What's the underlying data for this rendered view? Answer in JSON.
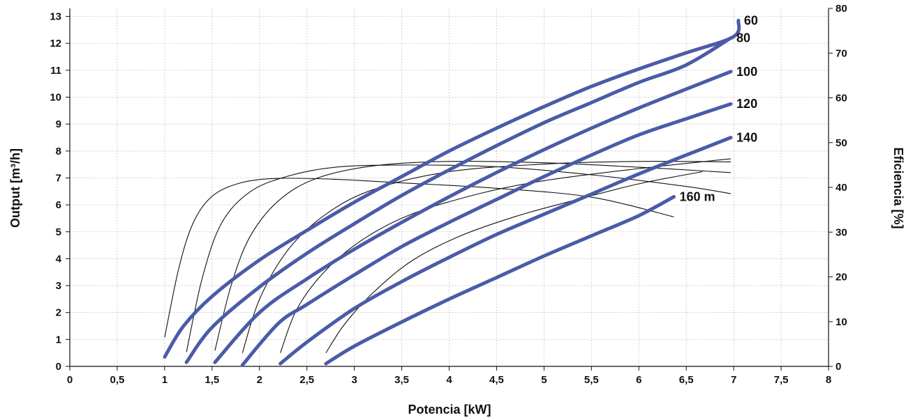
{
  "chart_data": {
    "type": "line",
    "xlabel": "Potencia [kW]",
    "ylabel": "Output [m³/h]",
    "y2label": "Eficiencia [%]",
    "xlim": [
      0,
      8
    ],
    "ylim": [
      0,
      13.3
    ],
    "y2lim": [
      0,
      80
    ],
    "grid": true,
    "x_ticks": [
      0,
      0.5,
      1,
      1.5,
      2,
      2.5,
      3,
      3.5,
      4,
      4.5,
      5,
      5.5,
      6,
      6.5,
      7,
      7.5,
      8
    ],
    "x_tick_labels": [
      "0",
      "0,5",
      "1",
      "1,5",
      "2",
      "2,5",
      "3",
      "3,5",
      "4",
      "4,5",
      "5",
      "5,5",
      "6",
      "6,5",
      "7",
      "7,5",
      "8"
    ],
    "y_ticks": [
      0,
      1,
      2,
      3,
      4,
      5,
      6,
      7,
      8,
      9,
      10,
      11,
      12,
      13
    ],
    "y_tick_labels": [
      "0",
      "1",
      "2",
      "3",
      "4",
      "5",
      "6",
      "7",
      "8",
      "9",
      "10",
      "11",
      "12",
      "13"
    ],
    "y2_ticks": [
      0,
      10,
      20,
      30,
      40,
      50,
      60,
      70,
      80
    ],
    "y2_tick_labels": [
      "0",
      "10",
      "20",
      "30",
      "40",
      "50",
      "60",
      "70",
      "80"
    ],
    "colors": {
      "output": "#4a5ba8",
      "efficiency": "#111111",
      "grid": "#c8c8c8"
    },
    "output_series": [
      {
        "name": "60",
        "points": [
          [
            1.0,
            0.35
          ],
          [
            1.2,
            1.5
          ],
          [
            1.5,
            2.6
          ],
          [
            2.0,
            3.95
          ],
          [
            2.5,
            5.05
          ],
          [
            3.0,
            6.1
          ],
          [
            3.5,
            7.05
          ],
          [
            4.0,
            8.0
          ],
          [
            4.5,
            8.85
          ],
          [
            5.0,
            9.65
          ],
          [
            5.5,
            10.4
          ],
          [
            6.0,
            11.05
          ],
          [
            6.5,
            11.65
          ],
          [
            7.0,
            12.25
          ],
          [
            7.05,
            12.85
          ]
        ]
      },
      {
        "name": "80",
        "points": [
          [
            1.23,
            0.15
          ],
          [
            1.5,
            1.45
          ],
          [
            2.0,
            2.95
          ],
          [
            2.5,
            4.2
          ],
          [
            3.0,
            5.3
          ],
          [
            3.5,
            6.35
          ],
          [
            4.0,
            7.3
          ],
          [
            4.5,
            8.2
          ],
          [
            5.0,
            9.05
          ],
          [
            5.5,
            9.8
          ],
          [
            6.0,
            10.55
          ],
          [
            6.5,
            11.2
          ],
          [
            6.97,
            12.2
          ]
        ]
      },
      {
        "name": "100",
        "points": [
          [
            1.53,
            0.15
          ],
          [
            2.0,
            2.0
          ],
          [
            2.5,
            3.25
          ],
          [
            3.0,
            4.35
          ],
          [
            3.5,
            5.35
          ],
          [
            4.0,
            6.3
          ],
          [
            4.5,
            7.2
          ],
          [
            5.0,
            8.05
          ],
          [
            5.5,
            8.85
          ],
          [
            6.0,
            9.6
          ],
          [
            6.5,
            10.3
          ],
          [
            6.97,
            10.95
          ]
        ]
      },
      {
        "name": "120",
        "points": [
          [
            1.82,
            0.05
          ],
          [
            2.2,
            1.6
          ],
          [
            2.5,
            2.3
          ],
          [
            3.0,
            3.4
          ],
          [
            3.5,
            4.45
          ],
          [
            4.0,
            5.35
          ],
          [
            4.5,
            6.2
          ],
          [
            5.0,
            7.05
          ],
          [
            5.5,
            7.85
          ],
          [
            6.0,
            8.6
          ],
          [
            6.5,
            9.2
          ],
          [
            6.97,
            9.75
          ]
        ]
      },
      {
        "name": "140",
        "points": [
          [
            2.22,
            0.1
          ],
          [
            2.5,
            0.9
          ],
          [
            3.0,
            2.15
          ],
          [
            3.5,
            3.15
          ],
          [
            4.0,
            4.05
          ],
          [
            4.5,
            4.9
          ],
          [
            5.0,
            5.65
          ],
          [
            5.5,
            6.4
          ],
          [
            6.0,
            7.15
          ],
          [
            6.5,
            7.85
          ],
          [
            6.97,
            8.5
          ]
        ]
      },
      {
        "name": "160 m",
        "points": [
          [
            2.7,
            0.1
          ],
          [
            3.0,
            0.75
          ],
          [
            3.5,
            1.65
          ],
          [
            4.0,
            2.5
          ],
          [
            4.5,
            3.3
          ],
          [
            5.0,
            4.1
          ],
          [
            5.5,
            4.85
          ],
          [
            6.0,
            5.6
          ],
          [
            6.37,
            6.3
          ]
        ]
      }
    ],
    "efficiency_series": [
      {
        "points": [
          [
            1.0,
            6.5
          ],
          [
            1.15,
            22.0
          ],
          [
            1.3,
            32.0
          ],
          [
            1.5,
            38.0
          ],
          [
            1.8,
            41.0
          ],
          [
            2.2,
            42.0
          ],
          [
            2.8,
            41.8
          ],
          [
            3.5,
            41.0
          ],
          [
            4.5,
            39.8
          ],
          [
            5.5,
            37.8
          ],
          [
            6.37,
            33.4
          ]
        ]
      },
      {
        "name": "",
        "points": [
          [
            1.23,
            3.2
          ],
          [
            1.4,
            20.0
          ],
          [
            1.6,
            32.0
          ],
          [
            1.9,
            39.0
          ],
          [
            2.3,
            42.5
          ],
          [
            2.8,
            44.5
          ],
          [
            3.5,
            45.0
          ],
          [
            4.5,
            44.6
          ],
          [
            5.5,
            42.8
          ],
          [
            6.5,
            40.2
          ],
          [
            6.97,
            38.6
          ]
        ]
      },
      {
        "name": "",
        "points": [
          [
            1.53,
            3.5
          ],
          [
            1.7,
            18.0
          ],
          [
            1.9,
            29.0
          ],
          [
            2.2,
            37.0
          ],
          [
            2.6,
            42.0
          ],
          [
            3.2,
            44.8
          ],
          [
            4.0,
            45.8
          ],
          [
            5.0,
            45.5
          ],
          [
            6.0,
            44.5
          ],
          [
            6.97,
            43.3
          ]
        ]
      },
      {
        "name": "",
        "points": [
          [
            1.82,
            3.0
          ],
          [
            2.0,
            15.0
          ],
          [
            2.3,
            26.0
          ],
          [
            2.7,
            34.0
          ],
          [
            3.2,
            39.5
          ],
          [
            4.0,
            43.5
          ],
          [
            5.0,
            45.2
          ],
          [
            6.0,
            45.8
          ],
          [
            6.97,
            45.7
          ]
        ]
      },
      {
        "name": "",
        "points": [
          [
            2.22,
            3.0
          ],
          [
            2.4,
            13.0
          ],
          [
            2.7,
            21.5
          ],
          [
            3.1,
            28.5
          ],
          [
            3.6,
            34.0
          ],
          [
            4.3,
            38.5
          ],
          [
            5.0,
            41.5
          ],
          [
            6.0,
            44.2
          ],
          [
            6.97,
            46.4
          ]
        ]
      },
      {
        "name": "",
        "points": [
          [
            2.7,
            3.0
          ],
          [
            2.9,
            9.5
          ],
          [
            3.2,
            16.5
          ],
          [
            3.6,
            23.5
          ],
          [
            4.1,
            29.0
          ],
          [
            4.7,
            33.5
          ],
          [
            5.3,
            37.0
          ],
          [
            6.0,
            40.8
          ],
          [
            6.67,
            43.5
          ]
        ]
      }
    ]
  }
}
